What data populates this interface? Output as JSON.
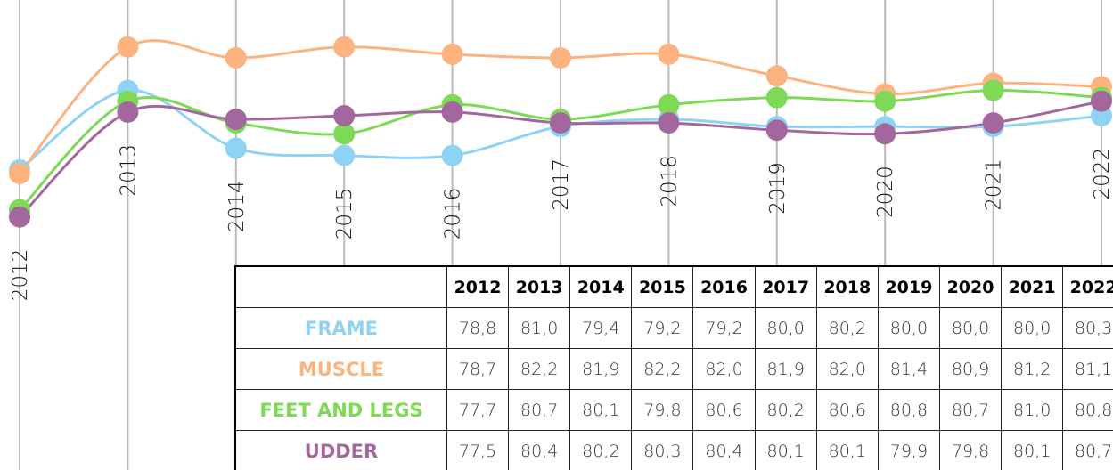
{
  "chart_data": {
    "type": "line",
    "categories": [
      "2012",
      "2013",
      "2014",
      "2015",
      "2016",
      "2017",
      "2018",
      "2019",
      "2020",
      "2021",
      "2022"
    ],
    "series": [
      {
        "color": "#8fd3f4",
        "values": [
          78.8,
          81.0,
          79.4,
          79.2,
          79.2,
          80.0,
          80.2,
          80.0,
          80.0,
          80.0,
          80.3
        ]
      },
      {
        "color": "#fdb37f",
        "values": [
          78.7,
          82.2,
          81.9,
          82.2,
          82.0,
          81.9,
          82.0,
          81.4,
          80.9,
          81.2,
          81.1
        ]
      },
      {
        "color": "#7ed957",
        "values": [
          77.7,
          80.7,
          80.1,
          79.8,
          80.6,
          80.2,
          80.6,
          80.8,
          80.7,
          81.0,
          80.8
        ]
      },
      {
        "color": "#a4679d",
        "values": [
          77.5,
          80.4,
          80.2,
          80.3,
          80.4,
          80.1,
          80.1,
          79.9,
          79.8,
          80.1,
          80.7
        ]
      }
    ],
    "ylim": [
      70.5,
      83.5
    ],
    "grid": true
  },
  "table": {
    "rows": [
      {
        "label": "FRAME",
        "cells": [
          "78,8",
          "81,0",
          "79,4",
          "79,2",
          "79,2",
          "80,0",
          "80,2",
          "80,0",
          "80,0",
          "80,0",
          "80,3"
        ]
      },
      {
        "label": "MUSCLE",
        "cells": [
          "78,7",
          "82,2",
          "81,9",
          "82,2",
          "82,0",
          "81,9",
          "82,0",
          "81,4",
          "80,9",
          "81,2",
          "81,1"
        ]
      },
      {
        "label": "FEET AND LEGS",
        "cells": [
          "77,7",
          "80,7",
          "80,1",
          "79,8",
          "80,6",
          "80,2",
          "80,6",
          "80,8",
          "80,7",
          "81,0",
          "80,8"
        ]
      },
      {
        "label": "UDDER",
        "cells": [
          "77,5",
          "80,4",
          "80,2",
          "80,3",
          "80,4",
          "80,1",
          "80,1",
          "79,9",
          "79,8",
          "80,1",
          "80,7"
        ]
      }
    ]
  }
}
